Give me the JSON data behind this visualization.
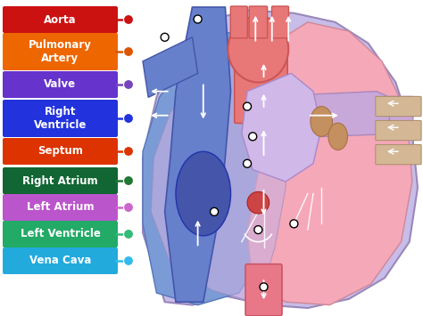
{
  "background_color": "#ffffff",
  "labels": [
    {
      "text": "Aorta",
      "color": "#cc1111",
      "dot_color": "#cc1111"
    },
    {
      "text": "Pulmonary\nArtery",
      "color": "#ee6600",
      "dot_color": "#dd5500"
    },
    {
      "text": "Valve",
      "color": "#6633cc",
      "dot_color": "#7744bb"
    },
    {
      "text": "Right\nVentricle",
      "color": "#2233dd",
      "dot_color": "#2233dd"
    },
    {
      "text": "Septum",
      "color": "#dd3300",
      "dot_color": "#dd3300"
    },
    {
      "text": "Right Atrium",
      "color": "#116633",
      "dot_color": "#227733"
    },
    {
      "text": "Left Atrium",
      "color": "#bb55cc",
      "dot_color": "#cc66cc"
    },
    {
      "text": "Left Ventricle",
      "color": "#22aa66",
      "dot_color": "#33bb77"
    },
    {
      "text": "Vena Cava",
      "color": "#22aadd",
      "dot_color": "#33bbee"
    }
  ],
  "label_font_size": 8.5,
  "heart_colors": {
    "outer_fill": "#c8bce8",
    "outer_edge": "#9988bb",
    "right_fill": "#7b9bd6",
    "right_edge": "#5577bb",
    "left_fill": "#f5a8b8",
    "left_edge": "#cc8899",
    "aorta_fill": "#e87878",
    "aorta_edge": "#cc5555",
    "pulm_fill": "#9ab0e0",
    "pulm_edge": "#7799cc",
    "purp_fill": "#c8a8d8",
    "purp_edge": "#aa88bb",
    "tan_fill": "#d4b896",
    "tan_edge": "#b09070",
    "valve_fill": "#c49060",
    "valve_edge": "#aa7040",
    "vc_fill": "#e87888",
    "vc_edge": "#cc5566",
    "inner_bg": "#f8c8d0",
    "dark_blue": "#4455aa",
    "dark_blue_edge": "#2233aa"
  }
}
